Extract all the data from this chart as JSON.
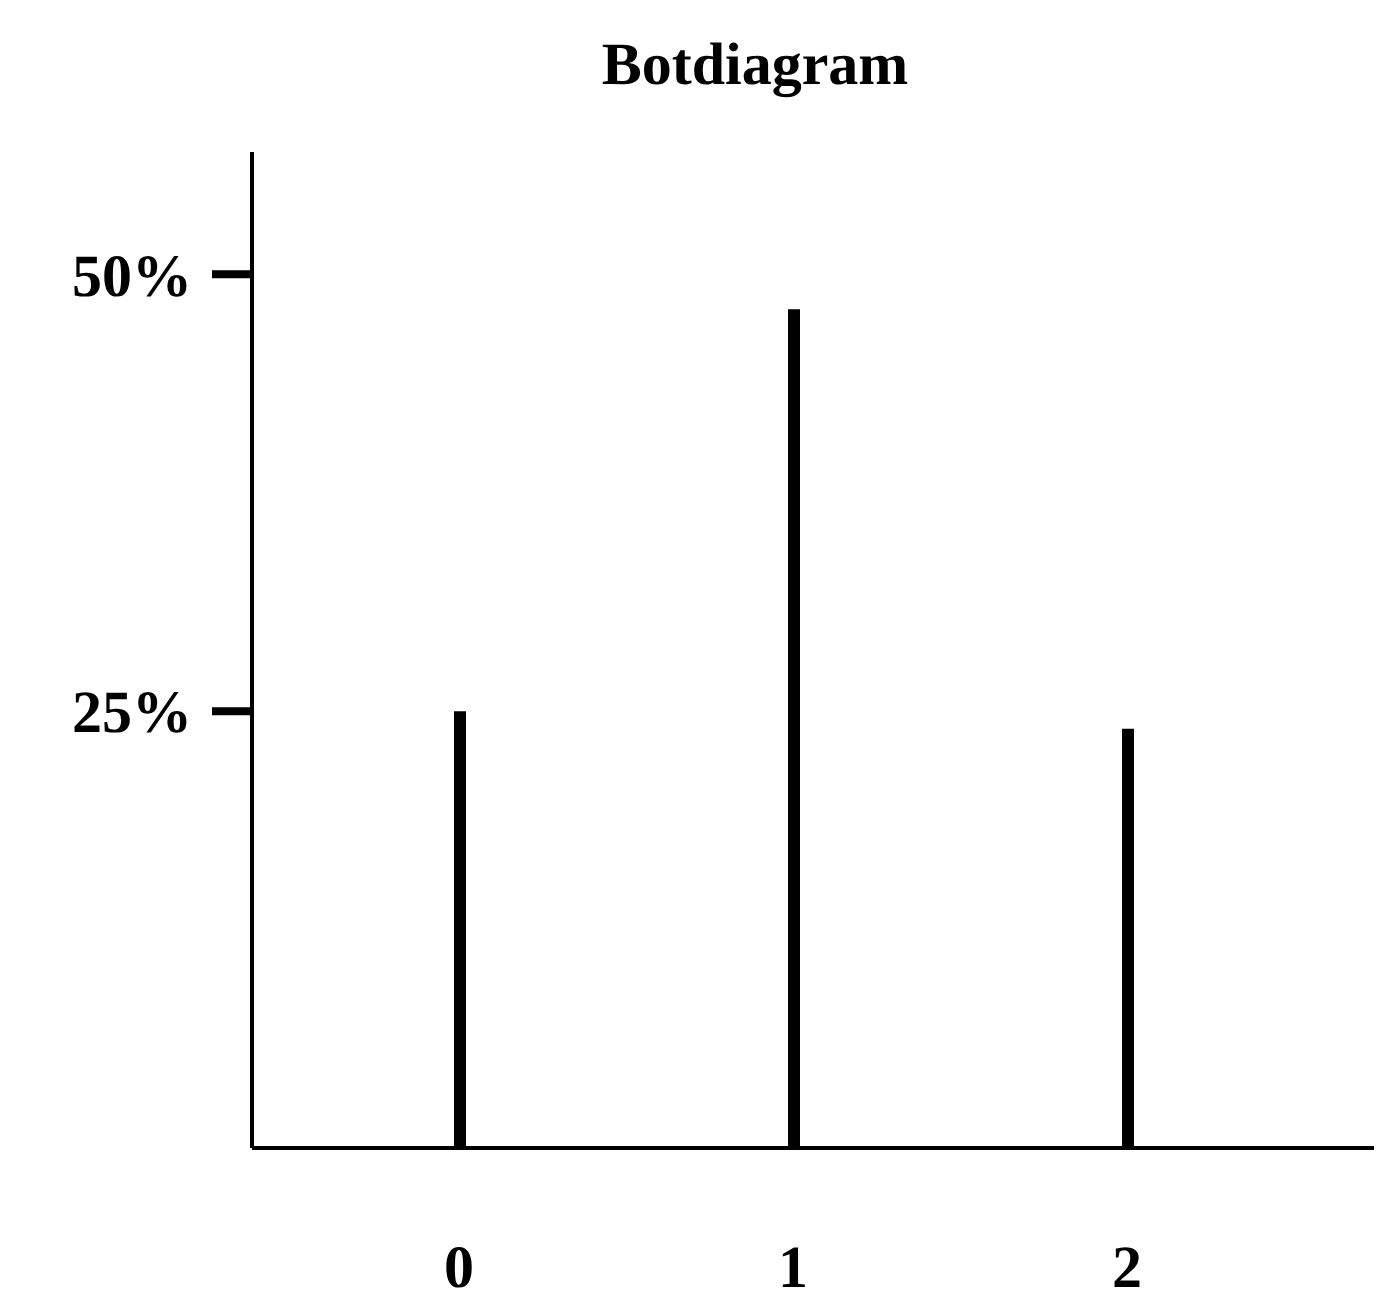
{
  "chart_data": {
    "type": "bar",
    "title": "Botdiagram",
    "categories": [
      "0",
      "1",
      "2"
    ],
    "values": [
      25,
      48,
      24
    ],
    "color": "#000000",
    "ylim": [
      0,
      57
    ],
    "yticks": [
      {
        "value": 25,
        "label": "25%"
      },
      {
        "value": 50,
        "label": "50%"
      }
    ],
    "grid": false
  }
}
